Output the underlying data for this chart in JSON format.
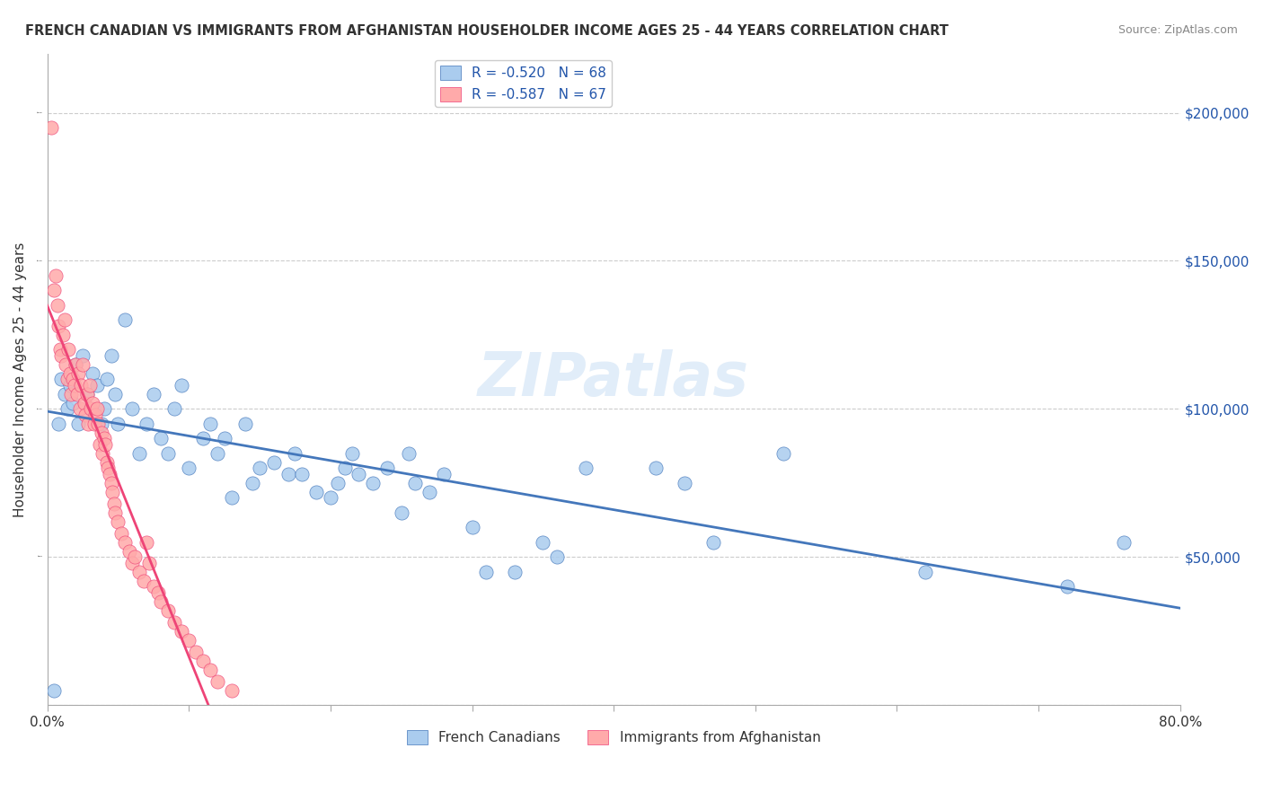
{
  "title": "FRENCH CANADIAN VS IMMIGRANTS FROM AFGHANISTAN HOUSEHOLDER INCOME AGES 25 - 44 YEARS CORRELATION CHART",
  "source": "Source: ZipAtlas.com",
  "xlabel_bottom": "",
  "ylabel": "Householder Income Ages 25 - 44 years",
  "x_min": 0.0,
  "x_max": 0.8,
  "y_min": 0,
  "y_max": 220000,
  "x_ticks": [
    0.0,
    0.1,
    0.2,
    0.3,
    0.4,
    0.5,
    0.6,
    0.7,
    0.8
  ],
  "x_tick_labels": [
    "0.0%",
    "",
    "",
    "",
    "",
    "",
    "",
    "",
    "80.0%"
  ],
  "y_ticks": [
    0,
    50000,
    100000,
    150000,
    200000
  ],
  "y_tick_labels": [
    "",
    "$50,000",
    "$100,000",
    "$150,000",
    "$200,000"
  ],
  "blue_R": -0.52,
  "blue_N": 68,
  "pink_R": -0.587,
  "pink_N": 67,
  "blue_color": "#aaccee",
  "blue_line_color": "#4477bb",
  "pink_color": "#ffaaaa",
  "pink_line_color": "#ee4477",
  "legend_blue_label": "R = -0.520   N = 68",
  "legend_pink_label": "R = -0.587   N = 67",
  "watermark": "ZIPatlas",
  "blue_scatter_x": [
    0.005,
    0.008,
    0.01,
    0.012,
    0.014,
    0.016,
    0.018,
    0.02,
    0.022,
    0.025,
    0.028,
    0.03,
    0.032,
    0.035,
    0.038,
    0.04,
    0.042,
    0.045,
    0.048,
    0.05,
    0.055,
    0.06,
    0.065,
    0.07,
    0.075,
    0.08,
    0.085,
    0.09,
    0.095,
    0.1,
    0.11,
    0.115,
    0.12,
    0.125,
    0.13,
    0.14,
    0.145,
    0.15,
    0.16,
    0.17,
    0.175,
    0.18,
    0.19,
    0.2,
    0.205,
    0.21,
    0.215,
    0.22,
    0.23,
    0.24,
    0.25,
    0.255,
    0.26,
    0.27,
    0.28,
    0.3,
    0.31,
    0.33,
    0.35,
    0.36,
    0.38,
    0.43,
    0.45,
    0.47,
    0.52,
    0.62,
    0.72,
    0.76
  ],
  "blue_scatter_y": [
    5000,
    95000,
    110000,
    105000,
    100000,
    108000,
    102000,
    115000,
    95000,
    118000,
    105000,
    100000,
    112000,
    108000,
    95000,
    100000,
    110000,
    118000,
    105000,
    95000,
    130000,
    100000,
    85000,
    95000,
    105000,
    90000,
    85000,
    100000,
    108000,
    80000,
    90000,
    95000,
    85000,
    90000,
    70000,
    95000,
    75000,
    80000,
    82000,
    78000,
    85000,
    78000,
    72000,
    70000,
    75000,
    80000,
    85000,
    78000,
    75000,
    80000,
    65000,
    85000,
    75000,
    72000,
    78000,
    60000,
    45000,
    45000,
    55000,
    50000,
    80000,
    80000,
    75000,
    55000,
    85000,
    45000,
    40000,
    55000
  ],
  "pink_scatter_x": [
    0.003,
    0.005,
    0.006,
    0.007,
    0.008,
    0.009,
    0.01,
    0.011,
    0.012,
    0.013,
    0.014,
    0.015,
    0.016,
    0.017,
    0.018,
    0.019,
    0.02,
    0.021,
    0.022,
    0.023,
    0.024,
    0.025,
    0.026,
    0.027,
    0.028,
    0.029,
    0.03,
    0.031,
    0.032,
    0.033,
    0.034,
    0.035,
    0.036,
    0.037,
    0.038,
    0.039,
    0.04,
    0.041,
    0.042,
    0.043,
    0.044,
    0.045,
    0.046,
    0.047,
    0.048,
    0.05,
    0.052,
    0.055,
    0.058,
    0.06,
    0.062,
    0.065,
    0.068,
    0.07,
    0.072,
    0.075,
    0.078,
    0.08,
    0.085,
    0.09,
    0.095,
    0.1,
    0.105,
    0.11,
    0.115,
    0.12,
    0.13
  ],
  "pink_scatter_y": [
    195000,
    140000,
    145000,
    135000,
    128000,
    120000,
    118000,
    125000,
    130000,
    115000,
    110000,
    120000,
    112000,
    105000,
    110000,
    108000,
    115000,
    105000,
    112000,
    100000,
    108000,
    115000,
    102000,
    98000,
    105000,
    95000,
    108000,
    100000,
    102000,
    95000,
    98000,
    100000,
    95000,
    88000,
    92000,
    85000,
    90000,
    88000,
    82000,
    80000,
    78000,
    75000,
    72000,
    68000,
    65000,
    62000,
    58000,
    55000,
    52000,
    48000,
    50000,
    45000,
    42000,
    55000,
    48000,
    40000,
    38000,
    35000,
    32000,
    28000,
    25000,
    22000,
    18000,
    15000,
    12000,
    8000,
    5000
  ]
}
